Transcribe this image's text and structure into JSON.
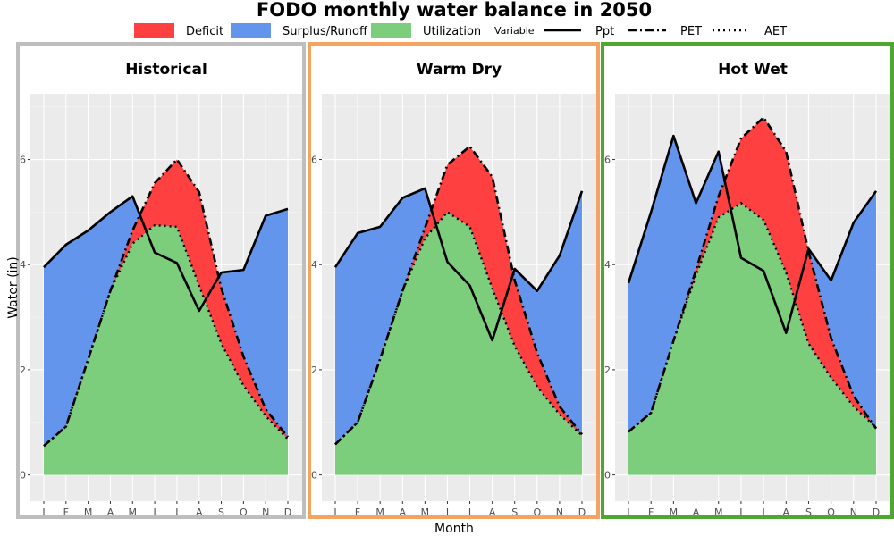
{
  "chart_data": {
    "type": "area",
    "title": "FODO monthly water balance in 2050",
    "xlabel": "Month",
    "ylabel": "Water (in)",
    "ylim": [
      -0.5,
      7.25
    ],
    "yticks": [
      0,
      2,
      4,
      6
    ],
    "months": [
      "J",
      "F",
      "M",
      "A",
      "M",
      "J",
      "J",
      "A",
      "S",
      "O",
      "N",
      "D"
    ],
    "legend": {
      "fill_items": [
        {
          "label": "Deficit",
          "color": "#ff4040"
        },
        {
          "label": "Surplus/Runoff",
          "color": "#6495ed"
        },
        {
          "label": "Utilization",
          "color": "#7ccd7c"
        }
      ],
      "line_title": "Variable",
      "line_items": [
        {
          "label": "Ppt",
          "style": "solid"
        },
        {
          "label": "PET",
          "style": "dashdot"
        },
        {
          "label": "AET",
          "style": "dotted"
        }
      ],
      "placement": "top"
    },
    "panels": [
      {
        "title": "Historical",
        "border_color": "#bebebe",
        "ppt": [
          3.95,
          4.38,
          4.65,
          5.0,
          5.3,
          4.23,
          4.03,
          3.12,
          3.85,
          3.9,
          4.93,
          5.06
        ],
        "pet": [
          0.55,
          0.92,
          2.2,
          3.5,
          4.65,
          5.55,
          6.0,
          5.38,
          3.55,
          2.25,
          1.25,
          0.72
        ],
        "aet": [
          0.55,
          0.92,
          2.2,
          3.5,
          4.4,
          4.75,
          4.72,
          3.6,
          2.5,
          1.7,
          1.12,
          0.68
        ]
      },
      {
        "title": "Warm Dry",
        "border_color": "#f4a460",
        "ppt": [
          3.95,
          4.6,
          4.72,
          5.27,
          5.45,
          4.05,
          3.6,
          2.56,
          3.92,
          3.5,
          4.17,
          5.4
        ],
        "pet": [
          0.58,
          1.0,
          2.2,
          3.5,
          4.7,
          5.9,
          6.25,
          5.67,
          3.7,
          2.32,
          1.3,
          0.77
        ],
        "aet": [
          0.58,
          1.0,
          2.2,
          3.5,
          4.5,
          5.0,
          4.72,
          3.55,
          2.45,
          1.68,
          1.15,
          0.75
        ]
      },
      {
        "title": "Hot Wet",
        "border_color": "#4ea72e",
        "ppt": [
          3.65,
          5.0,
          6.45,
          5.17,
          6.15,
          4.13,
          3.88,
          2.7,
          4.3,
          3.7,
          4.8,
          5.4
        ],
        "pet": [
          0.82,
          1.18,
          2.55,
          3.9,
          5.3,
          6.4,
          6.8,
          6.15,
          4.25,
          2.6,
          1.5,
          0.88
        ],
        "aet": [
          0.82,
          1.18,
          2.55,
          3.8,
          4.9,
          5.17,
          4.85,
          3.85,
          2.5,
          1.85,
          1.3,
          0.9
        ]
      }
    ]
  }
}
